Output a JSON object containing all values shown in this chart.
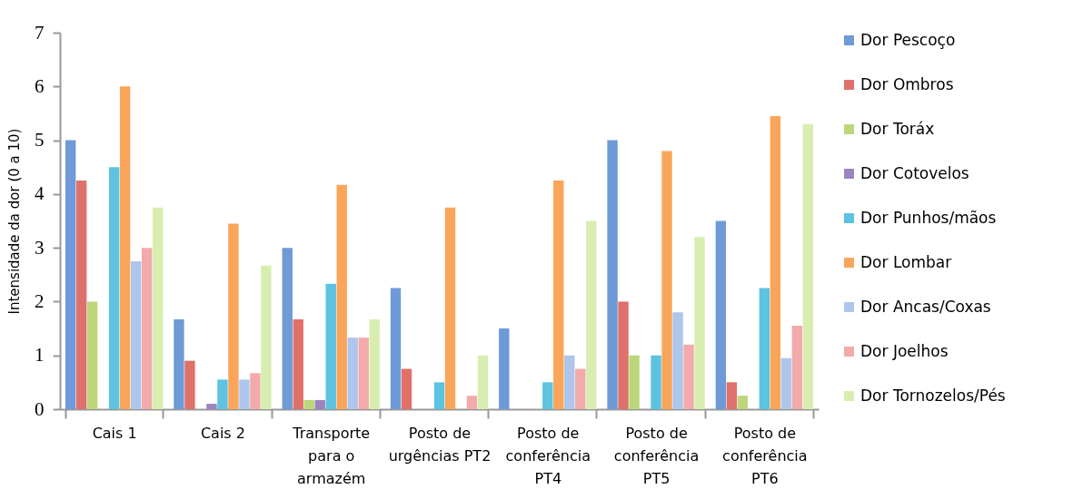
{
  "chart_data": {
    "type": "bar",
    "ylabel": "Intensidade da dor (0 a 10)",
    "categories": [
      "Cais 1",
      "Cais 2",
      "Transporte para o armazém",
      "Posto de urgências PT2",
      "Posto de conferência PT4",
      "Posto de conferência PT5",
      "Posto de conferência PT6"
    ],
    "series": [
      {
        "name": "Dor Pescoço",
        "color": "#6f9ad8",
        "values": [
          5,
          1.67,
          3,
          2.25,
          1.5,
          5,
          3.5
        ]
      },
      {
        "name": "Dor Ombros",
        "color": "#e0706a",
        "values": [
          4.25,
          0.9,
          1.67,
          0.75,
          0,
          2,
          0.5
        ]
      },
      {
        "name": "Dor Toráx",
        "color": "#bcd67a",
        "values": [
          2,
          0,
          0.17,
          0,
          0,
          1,
          0.25
        ]
      },
      {
        "name": "Dor Cotovelos",
        "color": "#9b84c0",
        "values": [
          0,
          0.1,
          0.17,
          0,
          0,
          0,
          0
        ]
      },
      {
        "name": "Dor Punhos/mãos",
        "color": "#5cc3e0",
        "values": [
          4.5,
          0.55,
          2.33,
          0.5,
          0.5,
          1,
          2.25
        ]
      },
      {
        "name": "Dor Lombar",
        "color": "#f9a55a",
        "values": [
          6,
          3.45,
          4.17,
          3.75,
          4.25,
          4.8,
          5.45
        ]
      },
      {
        "name": "Dor Ancas/Coxas",
        "color": "#aec6ec",
        "values": [
          2.75,
          0.55,
          1.33,
          0,
          1,
          1.8,
          0.95
        ]
      },
      {
        "name": "Dor Joelhos",
        "color": "#f2aaaa",
        "values": [
          3,
          0.67,
          1.33,
          0.25,
          0.75,
          1.2,
          1.55
        ]
      },
      {
        "name": "Dor Tornozelos/Pés",
        "color": "#d8eeb0",
        "values": [
          3.75,
          2.67,
          1.67,
          1,
          3.5,
          3.2,
          5.3
        ]
      }
    ],
    "ylim": [
      0,
      7
    ],
    "yticks": [
      0,
      1,
      2,
      3,
      4,
      5,
      6,
      7
    ],
    "grid": false,
    "legend": "right"
  }
}
